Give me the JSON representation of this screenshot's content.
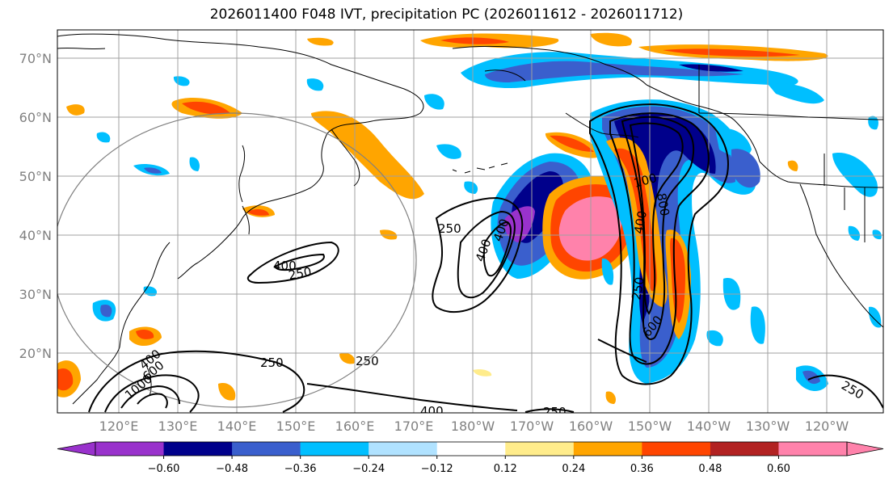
{
  "title": "2026011400 F048 IVT, precipitation PC (2026011612 - 2026011712)",
  "lat_labels": [
    "70°N",
    "60°N",
    "50°N",
    "40°N",
    "30°N",
    "20°N"
  ],
  "lon_labels": [
    "120°E",
    "130°E",
    "140°E",
    "150°E",
    "160°E",
    "170°E",
    "180°W",
    "170°W",
    "160°W",
    "150°W",
    "140°W",
    "130°W",
    "120°W"
  ],
  "contour_labels": [
    "250",
    "400",
    "400",
    "250",
    "250",
    "400",
    "100",
    "800",
    "400",
    "250",
    "600",
    "250",
    "400",
    "600",
    "1000",
    "250",
    "400",
    "250"
  ],
  "colorbar": {
    "ticks": [
      "−0.60",
      "−0.48",
      "−0.36",
      "−0.24",
      "−0.12",
      "0.12",
      "0.24",
      "0.36",
      "0.48",
      "0.60"
    ],
    "colors": [
      "#9932cc",
      "#00008b",
      "#3a5fcd",
      "#00bfff",
      "#b0e2ff",
      "#ffffff",
      "#ffec8b",
      "#ffa500",
      "#ff4500",
      "#b22222",
      "#ff82ab"
    ]
  },
  "colors": {
    "grid": "#a0a0a0",
    "coast": "#000000",
    "contour": "#000000",
    "circle": "#808080"
  }
}
